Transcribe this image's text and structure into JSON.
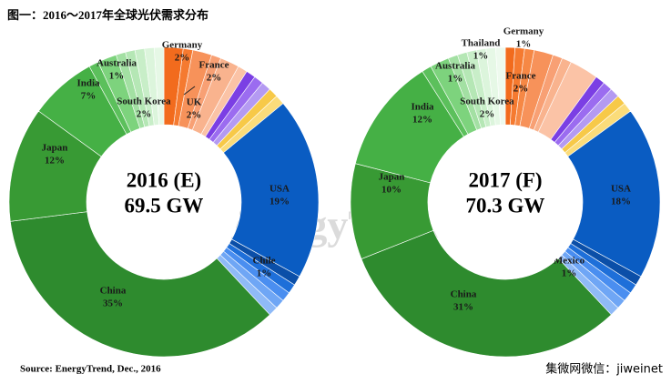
{
  "title": "图一：2016～2017年全球光伏需求分布",
  "source": "Source: EnergyTrend, Dec., 2016",
  "watermark": "EnergyTrend",
  "footer": "集微网微信：jiweinet",
  "chart_data": [
    {
      "type": "donut",
      "title": "2016 (E)",
      "subtitle": "69.5 GW",
      "categories": [
        "Germany",
        null,
        "France",
        null,
        "UK",
        null,
        null,
        null,
        null,
        null,
        null,
        "USA",
        null,
        "Chile",
        null,
        null,
        null,
        "China",
        "Japan",
        "India",
        "Australia",
        "South Korea",
        null,
        null,
        null,
        null,
        null
      ],
      "values": [
        2,
        1,
        2,
        1,
        2,
        1,
        1,
        1,
        1,
        1,
        1,
        19,
        1,
        1,
        1,
        1,
        1,
        35,
        12,
        7,
        1,
        2,
        1,
        1,
        1,
        1,
        1
      ],
      "value_labels": [
        "2%",
        null,
        "2%",
        null,
        "2%",
        null,
        null,
        null,
        null,
        null,
        null,
        "19%",
        null,
        "1%",
        null,
        null,
        null,
        "35%",
        "12%",
        "7%",
        "1%",
        "2%",
        null,
        null,
        null,
        null,
        null
      ],
      "colors": [
        "#f26b1d",
        "#f57a30",
        "#f7925a",
        "#f8a074",
        "#f9b38e",
        "#fbc3a6",
        "#7b3fe4",
        "#9b6cf0",
        "#b49af2",
        "#f7c948",
        "#fbdc7a",
        "#0a5cc2",
        "#0b4fa8",
        "#1e6fd9",
        "#4a8ef0",
        "#6fa6f5",
        "#8fbaf7",
        "#2e8b2e",
        "#389a34",
        "#45b045",
        "#5cc05c",
        "#7dd37d",
        "#a3e0a3",
        "#b5e7b5",
        "#c8eec8",
        "#dcf5dc",
        "#e6f8e6"
      ]
    },
    {
      "type": "donut",
      "title": "2017 (F)",
      "subtitle": "70.3 GW",
      "categories": [
        "Germany",
        null,
        null,
        "France",
        null,
        null,
        null,
        null,
        null,
        null,
        null,
        null,
        "USA",
        null,
        "Mexico",
        null,
        null,
        null,
        "China",
        "Japan",
        "India",
        "Australia",
        "South Korea",
        "Thailand",
        null,
        null,
        null,
        null,
        null
      ],
      "values": [
        1,
        1,
        1,
        2,
        1,
        1,
        3,
        1,
        1,
        1,
        1,
        1,
        18,
        1,
        1,
        1,
        1,
        1,
        31,
        10,
        12,
        1,
        2,
        1,
        1,
        1,
        1,
        1,
        1
      ],
      "value_labels": [
        "1%",
        null,
        null,
        "2%",
        null,
        null,
        null,
        null,
        null,
        null,
        null,
        null,
        "18%",
        null,
        "1%",
        null,
        null,
        null,
        "31%",
        "10%",
        "12%",
        "1%",
        "2%",
        "1%",
        null,
        null,
        null,
        null,
        null
      ],
      "colors": [
        "#f26b1d",
        "#f57a30",
        "#f68845",
        "#f7925a",
        "#f8a074",
        "#f9b38e",
        "#fbc3a6",
        "#7b3fe4",
        "#9b6cf0",
        "#b49af2",
        "#f7c948",
        "#fbdc7a",
        "#0a5cc2",
        "#0b4fa8",
        "#1e6fd9",
        "#4a8ef0",
        "#6fa6f5",
        "#8fbaf7",
        "#2e8b2e",
        "#389a34",
        "#45b045",
        "#5cc05c",
        "#7dd37d",
        "#a3e0a3",
        "#b5e7b5",
        "#c8eec8",
        "#dcf5dc",
        "#e6f8e6",
        "#eefaee"
      ]
    }
  ]
}
